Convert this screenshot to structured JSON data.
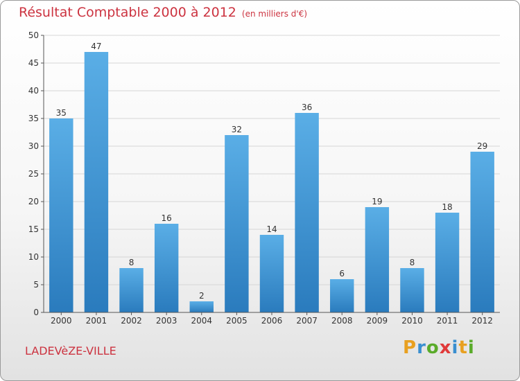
{
  "header": {
    "title": "Résultat Comptable 2000 à 2012",
    "unit": "(en milliers d'€)"
  },
  "footer": {
    "town": "LADEVèZE-VILLE",
    "brand": "Proxiti",
    "brand_colors": [
      "#e8a020",
      "#3a8fd0",
      "#5aab2a",
      "#e03a3a",
      "#3a8fd0",
      "#e8a020",
      "#5aab2a"
    ]
  },
  "colors": {
    "bar_top": "#5aaee6",
    "bar_bottom": "#2a7bbd",
    "grid": "#d6d6d6"
  },
  "chart_data": {
    "type": "bar",
    "categories": [
      "2000",
      "2001",
      "2002",
      "2003",
      "2004",
      "2005",
      "2006",
      "2007",
      "2008",
      "2009",
      "2010",
      "2011",
      "2012"
    ],
    "values": [
      35,
      47,
      8,
      16,
      2,
      32,
      14,
      36,
      6,
      19,
      8,
      18,
      29
    ],
    "title": "Résultat Comptable 2000 à 2012",
    "ylim": [
      0,
      50
    ],
    "yticks": [
      0,
      5,
      10,
      15,
      20,
      25,
      30,
      35,
      40,
      45,
      50
    ],
    "grid": true,
    "legend": "none"
  }
}
